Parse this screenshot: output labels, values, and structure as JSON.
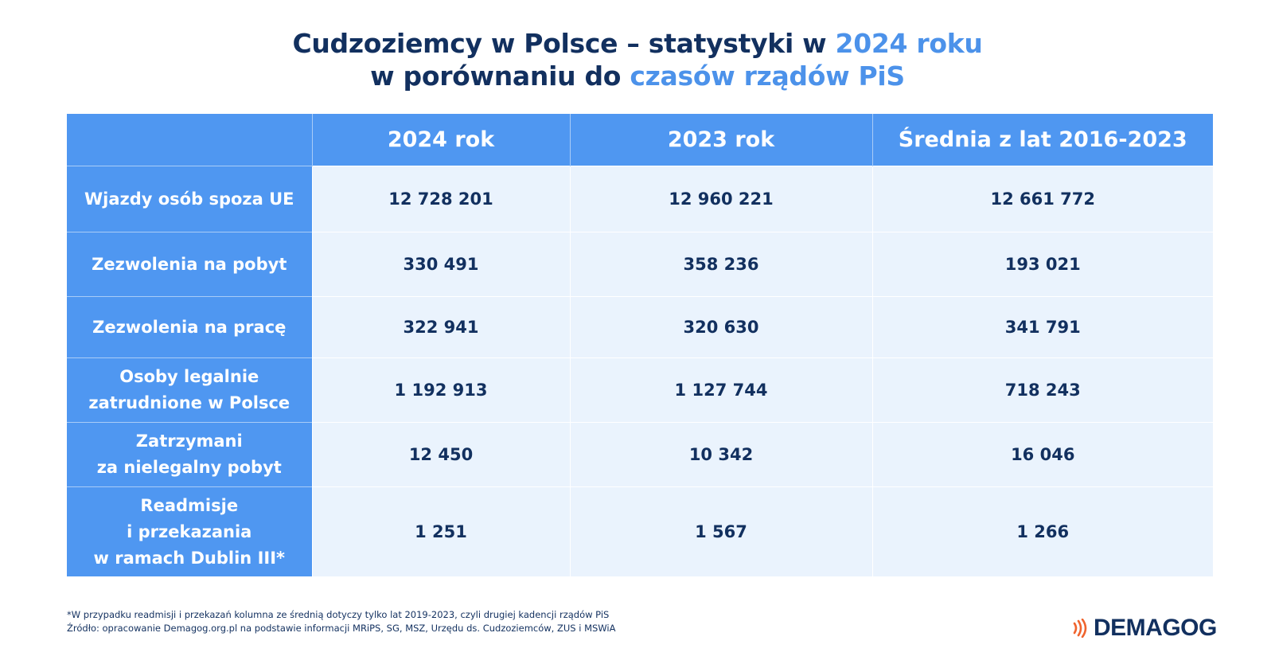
{
  "title": {
    "line1_a": "Cudzoziemcy w Polsce – statystyki w ",
    "line1_b": "2024 roku",
    "line2_a": "w porównaniu do ",
    "line2_b": "czasów rządów PiS",
    "accent_color": "#4c92ea",
    "text_color": "#12305f"
  },
  "chart_data": {
    "type": "table",
    "columns": [
      "",
      "2024 rok",
      "2023 rok",
      "Średnia z lat 2016-2023"
    ],
    "rows": [
      {
        "label": [
          "Wjazdy osób spoza UE"
        ],
        "values": [
          "12 728 201",
          "12 960 221",
          "12 661 772"
        ],
        "h": 82
      },
      {
        "label": [
          "Zezwolenia na pobyt"
        ],
        "values": [
          "330 491",
          "358 236",
          "193 021"
        ],
        "h": 80
      },
      {
        "label": [
          "Zezwolenia na pracę"
        ],
        "values": [
          "322 941",
          "320 630",
          "341 791"
        ],
        "h": 76
      },
      {
        "label": [
          "Osoby legalnie",
          "zatrudnione w Polsce"
        ],
        "values": [
          "1 192 913",
          "1 127 744",
          "718 243"
        ],
        "h": 80
      },
      {
        "label": [
          "Zatrzymani",
          "za nielegalny pobyt"
        ],
        "values": [
          "12 450",
          "10 342",
          "16 046"
        ],
        "h": 80
      },
      {
        "label": [
          "Readmisje",
          "i przekazania",
          "w ramach Dublin III*"
        ],
        "values": [
          "1 251",
          "1 567",
          "1 266"
        ],
        "h": 112
      }
    ]
  },
  "footnote": {
    "line1": "*W przypadku readmisji i przekazań kolumna ze średnią dotyczy tylko lat 2019-2023, czyli drugiej kadencji rządów PiS",
    "line2": "Źródło: opracowanie Demagog.org.pl na podstawie informacji MRiPS, SG, MSZ, Urzędu ds. Cudzoziemców, ZUS i MSWiA"
  },
  "logo": {
    "text": "DEMAGOG",
    "icon": "sound-waves-icon",
    "icon_color": "#f0642e"
  },
  "colors": {
    "header_bg": "#4f97f1",
    "cell_bg": "#eaf3fd"
  }
}
